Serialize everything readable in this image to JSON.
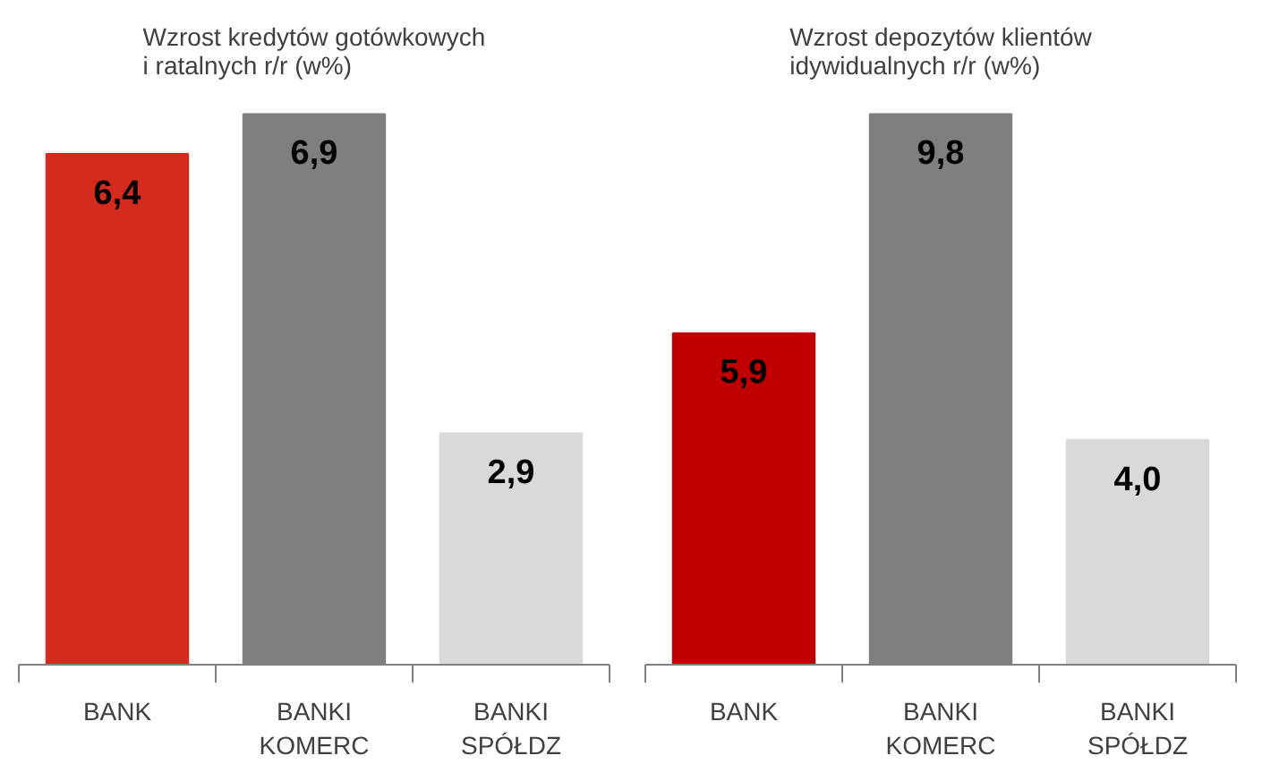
{
  "chart_data": [
    {
      "type": "bar",
      "title": "Wzrost kredytów gotówkowych\ni ratalnych  r/r (w%)",
      "categories": [
        "BANK",
        "BANKI\nKOMERC",
        "BANKI\nSPÓŁDZ"
      ],
      "values": [
        6.4,
        6.9,
        2.9
      ],
      "colors": [
        "#d52b1e",
        "#7f7f7f",
        "#d9d9d9"
      ],
      "value_labels": [
        "6,4",
        "6,9",
        "2,9"
      ],
      "tick_labels": "x",
      "grid": false
    },
    {
      "type": "bar",
      "title": "Wzrost depozytów klientów\nidywidualnych r/r (w%)",
      "categories": [
        "BANK",
        "BANKI\nKOMERC",
        "BANKI\nSPÓŁDZ"
      ],
      "values": [
        5.9,
        9.8,
        4.0
      ],
      "colors": [
        "#c00000",
        "#7f7f7f",
        "#d9d9d9"
      ],
      "value_labels": [
        "5,9",
        "9,8",
        "4,0"
      ],
      "tick_labels": "x",
      "grid": false
    }
  ]
}
